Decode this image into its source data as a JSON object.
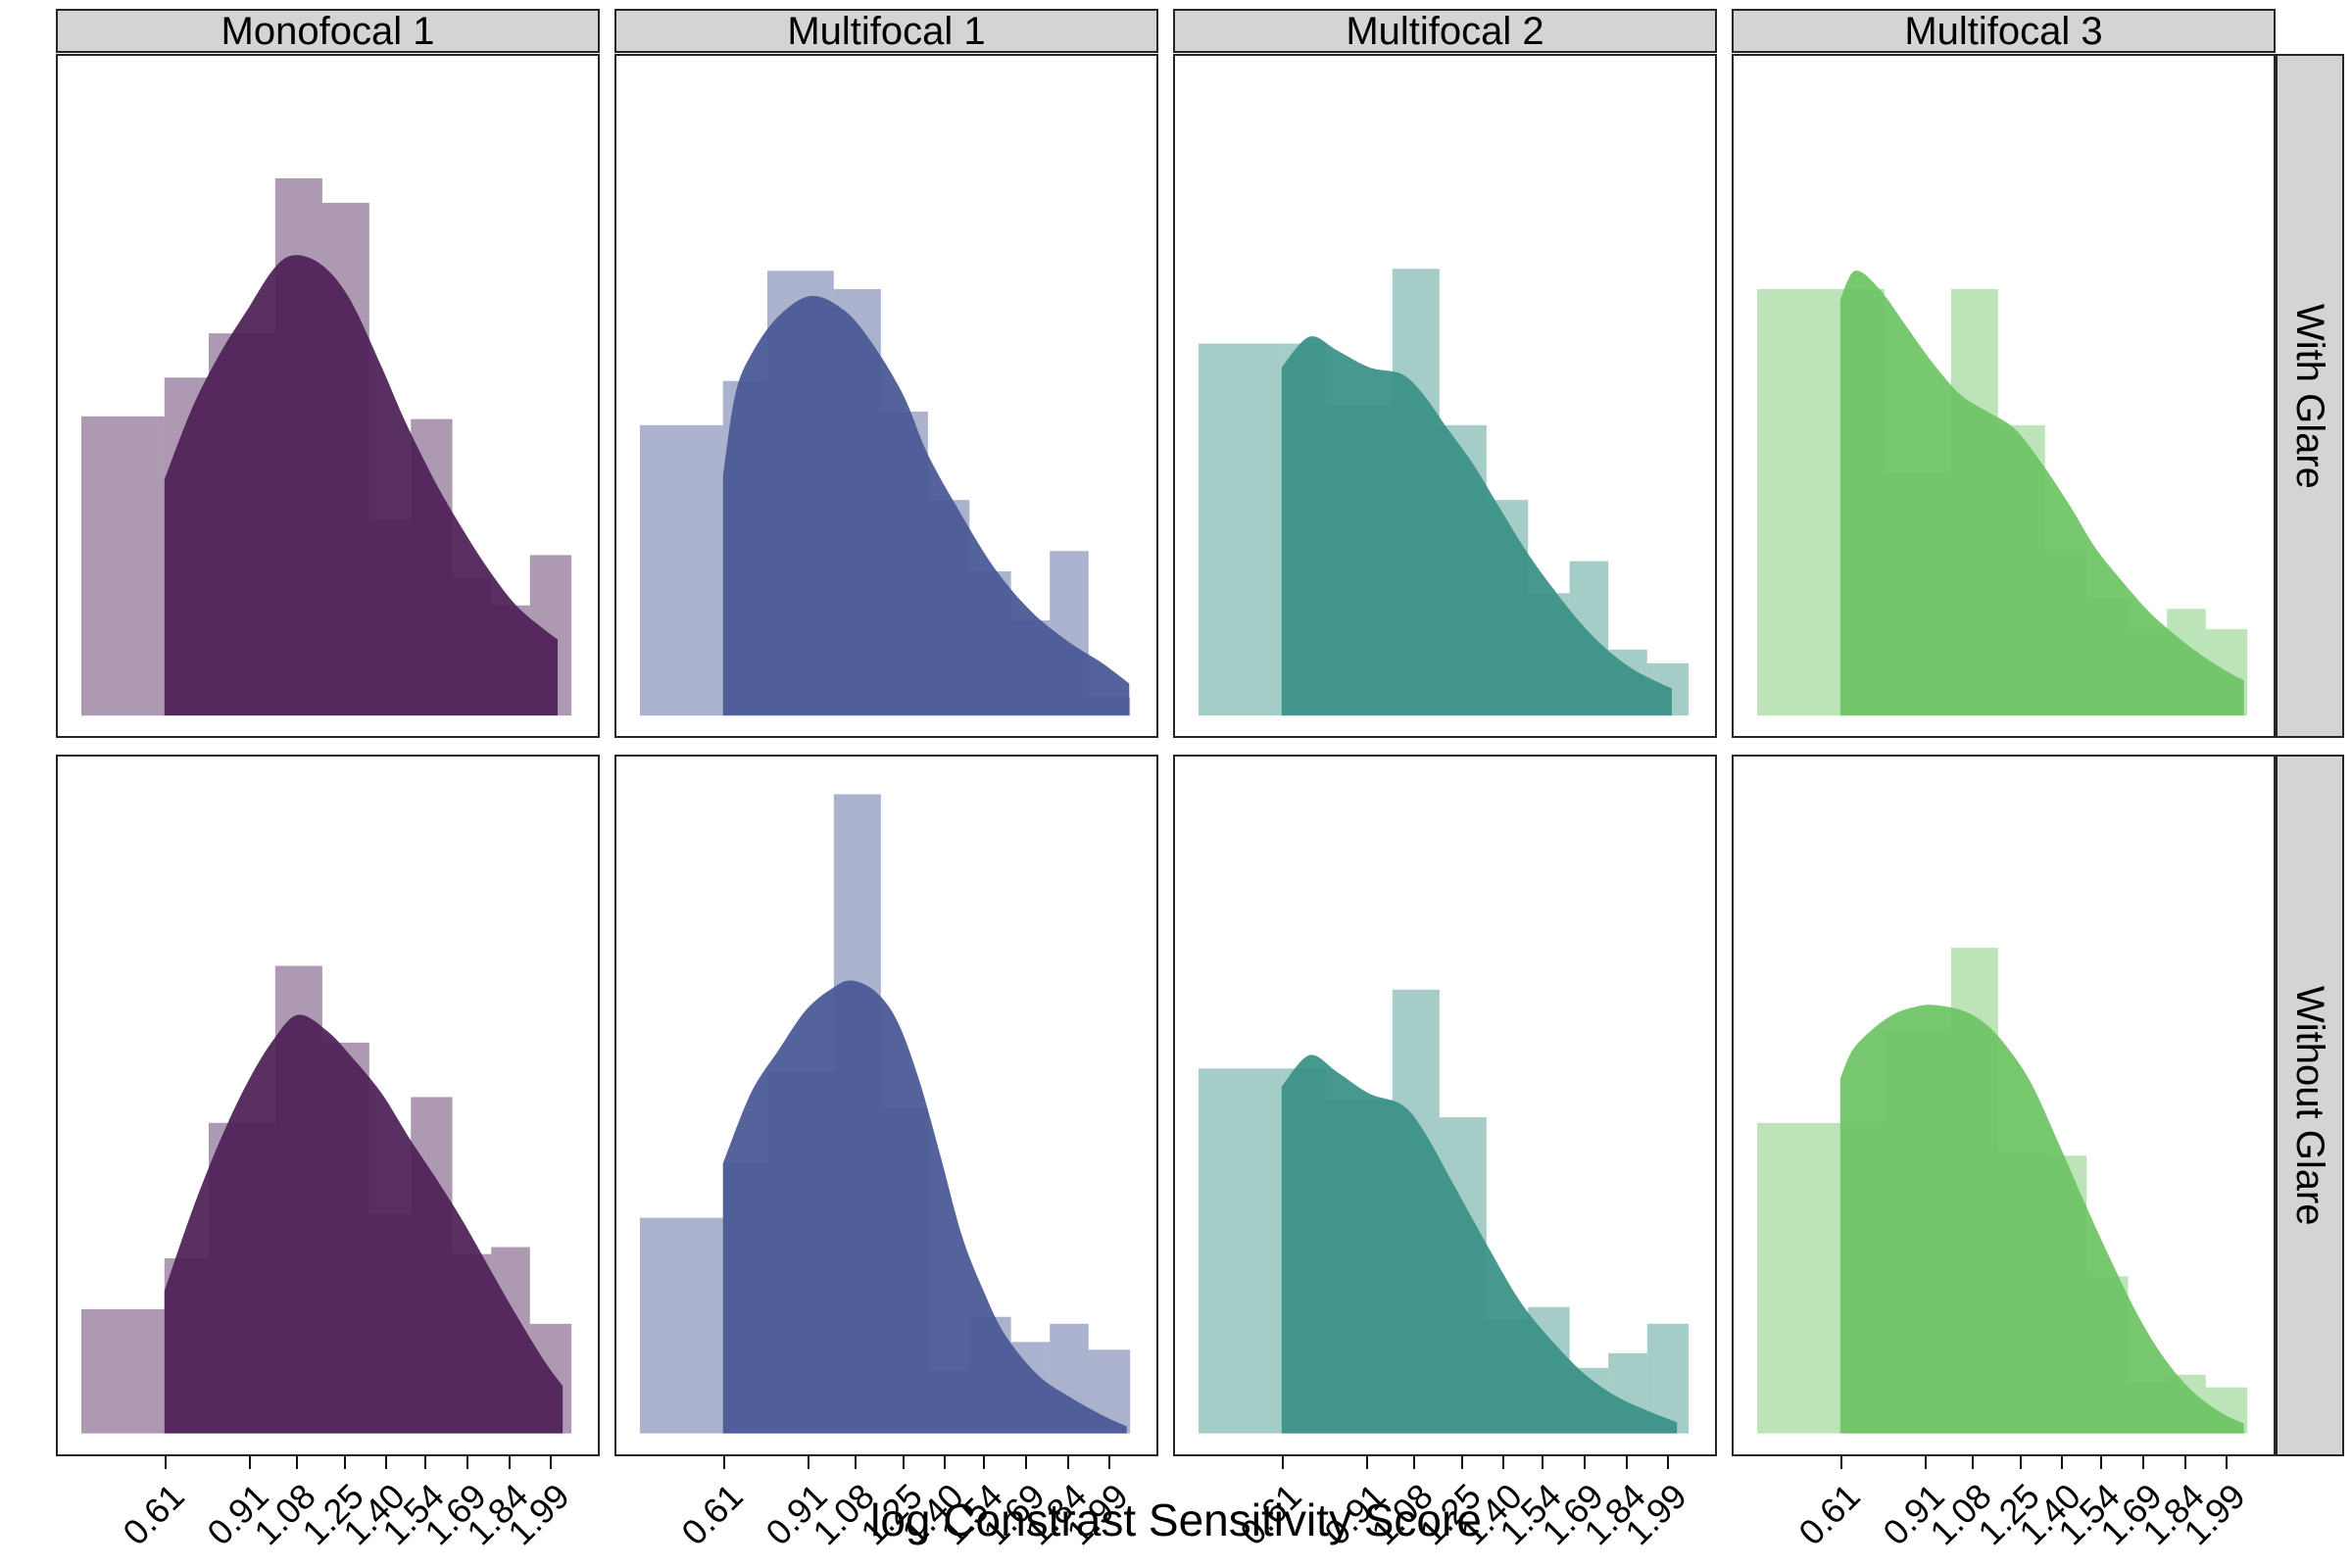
{
  "figure": {
    "strip_bg": "#d4d4d4",
    "border_color": "#262626",
    "facet_columns": [
      "Monofocal 1",
      "Multifocal 1",
      "Multifocal 2",
      "Multifocal 3"
    ],
    "facet_rows": [
      "With Glare",
      "Without Glare"
    ]
  },
  "chart_data": {
    "type": "histogram+density faceted grid",
    "title": "",
    "xlabel": "log Constrast Sensitivity Score",
    "ylabel": "",
    "facet_columns": [
      "Monofocal 1",
      "Multifocal 1",
      "Multifocal 2",
      "Multifocal 3"
    ],
    "facet_rows": [
      "With Glare",
      "Without Glare"
    ],
    "x_ticks": [
      0.61,
      0.91,
      1.08,
      1.25,
      1.4,
      1.54,
      1.69,
      1.84,
      1.99
    ],
    "x_range": [
      0.215,
      2.165
    ],
    "grid": "off",
    "legend": "none",
    "hist_alpha": 0.46,
    "density_alpha": 0.935,
    "y_note": "bar_heights and density h are fractions of inner panel height above the baseline",
    "bin_edges": [
      0.3,
      0.6,
      0.76,
      1.0,
      1.17,
      1.34,
      1.49,
      1.64,
      1.78,
      1.92,
      2.07
    ],
    "panels": [
      {
        "column": "Monofocal 1",
        "row": "With Glare",
        "color": "#4e2157",
        "bar_heights": [
          0.44,
          0.497,
          0.562,
          0.79,
          0.754,
          0.287,
          0.436,
          0.203,
          0.162,
          0.236
        ],
        "density": {
          "x": [
            0.6,
            0.7,
            0.8,
            0.9,
            0.995,
            1.07,
            1.17,
            1.27,
            1.385,
            1.47,
            1.58,
            1.68,
            1.775,
            1.87,
            1.97,
            2.02
          ],
          "h": [
            0.347,
            0.452,
            0.532,
            0.597,
            0.657,
            0.677,
            0.662,
            0.612,
            0.512,
            0.432,
            0.342,
            0.272,
            0.212,
            0.162,
            0.127,
            0.112
          ]
        }
      },
      {
        "column": "Multifocal 1",
        "row": "With Glare",
        "color": "#495895",
        "bar_heights": [
          0.427,
          0.492,
          0.654,
          0.627,
          0.447,
          0.317,
          0.212,
          0.14,
          0.242,
          0.027
        ],
        "density": {
          "x": [
            0.6,
            0.644,
            0.703,
            0.8,
            0.917,
            1.034,
            1.131,
            1.25,
            1.336,
            1.444,
            1.58,
            1.716,
            1.853,
            1.97,
            2.067
          ],
          "h": [
            0.352,
            0.472,
            0.532,
            0.587,
            0.617,
            0.597,
            0.552,
            0.472,
            0.387,
            0.307,
            0.217,
            0.152,
            0.107,
            0.077,
            0.047
          ]
        }
      },
      {
        "column": "Multifocal 2",
        "row": "With Glare",
        "color": "#3a9186",
        "bar_heights": [
          0.547,
          0.547,
          0.457,
          0.657,
          0.427,
          0.317,
          0.18,
          0.227,
          0.097,
          0.077
        ],
        "density": {
          "x": [
            0.6,
            0.7,
            0.8,
            0.917,
            1.034,
            1.112,
            1.19,
            1.288,
            1.385,
            1.483,
            1.58,
            1.678,
            1.775,
            1.873,
            1.97,
            2.009
          ],
          "h": [
            0.512,
            0.557,
            0.537,
            0.512,
            0.502,
            0.472,
            0.427,
            0.372,
            0.307,
            0.242,
            0.187,
            0.137,
            0.097,
            0.067,
            0.047,
            0.04
          ]
        }
      },
      {
        "column": "Multifocal 3",
        "row": "With Glare",
        "color": "#6dc465",
        "bar_heights": [
          0.627,
          0.627,
          0.357,
          0.627,
          0.427,
          0.242,
          0.172,
          0.127,
          0.157,
          0.127
        ],
        "density": {
          "x": [
            0.6,
            0.654,
            0.742,
            0.839,
            0.937,
            1.034,
            1.131,
            1.229,
            1.326,
            1.424,
            1.521,
            1.619,
            1.717,
            1.814,
            1.911,
            2.009,
            2.058
          ],
          "h": [
            0.612,
            0.654,
            0.627,
            0.572,
            0.517,
            0.472,
            0.447,
            0.422,
            0.372,
            0.312,
            0.247,
            0.197,
            0.152,
            0.117,
            0.087,
            0.062,
            0.052
          ]
        }
      },
      {
        "column": "Monofocal 1",
        "row": "Without Glare",
        "color": "#4e2157",
        "bar_heights": [
          0.178,
          0.251,
          0.445,
          0.67,
          0.56,
          0.314,
          0.482,
          0.257,
          0.267,
          0.157
        ],
        "density": {
          "x": [
            0.6,
            0.7,
            0.8,
            0.9,
            0.995,
            1.083,
            1.19,
            1.288,
            1.385,
            1.483,
            1.58,
            1.678,
            1.775,
            1.873,
            1.97,
            2.038
          ],
          "h": [
            0.204,
            0.319,
            0.419,
            0.503,
            0.565,
            0.6,
            0.576,
            0.534,
            0.487,
            0.424,
            0.366,
            0.304,
            0.236,
            0.168,
            0.105,
            0.068
          ]
        }
      },
      {
        "column": "Multifocal 1",
        "row": "Without Glare",
        "color": "#495895",
        "bar_heights": [
          0.309,
          0.387,
          0.518,
          0.916,
          0.466,
          0.089,
          0.167,
          0.131,
          0.157,
          0.12
        ],
        "density": {
          "x": [
            0.6,
            0.7,
            0.8,
            0.9,
            0.995,
            1.063,
            1.151,
            1.229,
            1.307,
            1.385,
            1.463,
            1.541,
            1.619,
            1.736,
            1.853,
            1.97,
            2.058
          ],
          "h": [
            0.387,
            0.487,
            0.549,
            0.607,
            0.638,
            0.649,
            0.633,
            0.591,
            0.508,
            0.398,
            0.283,
            0.204,
            0.141,
            0.084,
            0.052,
            0.026,
            0.01
          ]
        }
      },
      {
        "column": "Multifocal 2",
        "row": "Without Glare",
        "color": "#3a9186",
        "bar_heights": [
          0.523,
          0.523,
          0.478,
          0.636,
          0.453,
          0.162,
          0.181,
          0.094,
          0.115,
          0.157
        ],
        "density": {
          "x": [
            0.6,
            0.7,
            0.8,
            0.917,
            1.034,
            1.112,
            1.229,
            1.346,
            1.463,
            1.58,
            1.697,
            1.814,
            1.931,
            2.028
          ],
          "h": [
            0.497,
            0.542,
            0.518,
            0.487,
            0.471,
            0.434,
            0.351,
            0.267,
            0.188,
            0.131,
            0.084,
            0.052,
            0.031,
            0.016
          ]
        }
      },
      {
        "column": "Multifocal 3",
        "row": "Without Glare",
        "color": "#6dc465",
        "bar_heights": [
          0.445,
          0.445,
          0.576,
          0.696,
          0.403,
          0.398,
          0.225,
          0.073,
          0.084,
          0.066
        ],
        "density": {
          "x": [
            0.6,
            0.644,
            0.722,
            0.8,
            0.878,
            0.937,
            1.034,
            1.112,
            1.19,
            1.288,
            1.385,
            1.483,
            1.58,
            1.678,
            1.775,
            1.873,
            1.97,
            2.058
          ],
          "h": [
            0.508,
            0.549,
            0.581,
            0.602,
            0.612,
            0.614,
            0.607,
            0.591,
            0.56,
            0.503,
            0.419,
            0.33,
            0.246,
            0.167,
            0.105,
            0.06,
            0.031,
            0.014
          ]
        }
      }
    ]
  }
}
